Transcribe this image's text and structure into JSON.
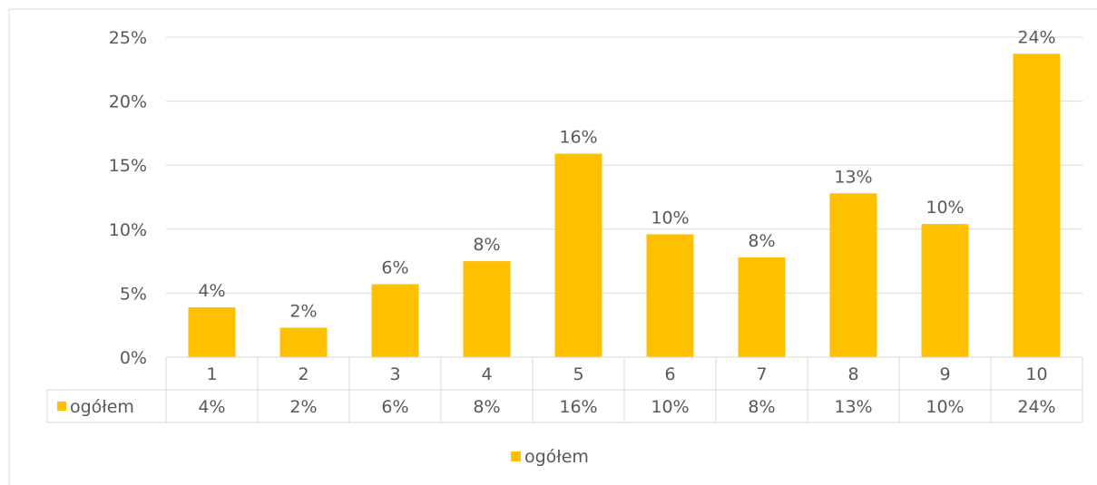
{
  "chart_data": {
    "type": "bar",
    "categories": [
      "1",
      "2",
      "3",
      "4",
      "5",
      "6",
      "7",
      "8",
      "9",
      "10"
    ],
    "series": [
      {
        "name": "ogółem",
        "values": [
          3.9,
          2.3,
          5.7,
          7.5,
          15.9,
          9.6,
          7.8,
          12.8,
          10.4,
          23.7
        ],
        "labels": [
          "4%",
          "2%",
          "6%",
          "8%",
          "16%",
          "10%",
          "8%",
          "13%",
          "10%",
          "24%"
        ],
        "color": "#FFC000"
      }
    ],
    "title": "",
    "xlabel": "",
    "ylabel": "",
    "ylim": [
      0,
      25
    ],
    "y_ticks": [
      0,
      5,
      10,
      15,
      20,
      25
    ],
    "y_tick_labels": [
      "0%",
      "5%",
      "10%",
      "15%",
      "20%",
      "25%"
    ],
    "grid": true,
    "data_table": true,
    "legend": {
      "position": "bottom",
      "entries": [
        "ogółem"
      ]
    }
  },
  "colors": {
    "bar": "#FFC000",
    "grid": "#D9D9D9",
    "text": "#595959",
    "frame": "#D9D9D9"
  }
}
